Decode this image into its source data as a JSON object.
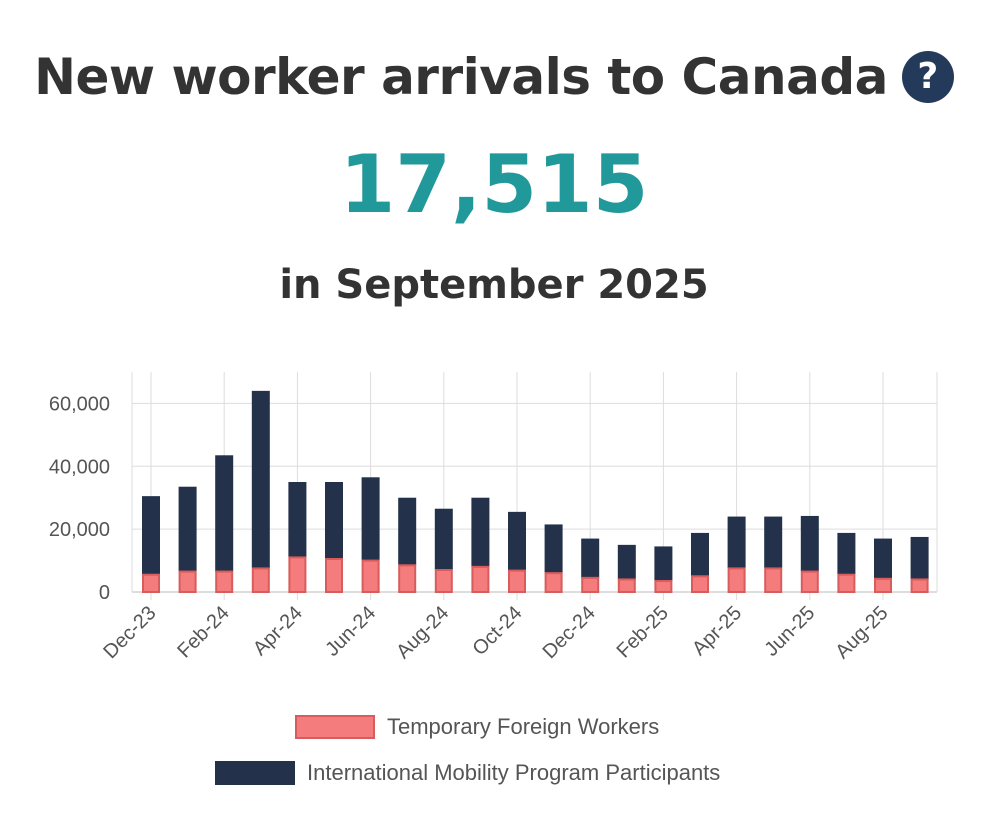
{
  "header": {
    "title": "New worker arrivals to Canada",
    "help_icon": "question-circle-icon",
    "value": "17,515",
    "period": "in September 2025"
  },
  "colors": {
    "tfw": "#f47c7c",
    "tfw_border": "#d95c5c",
    "imp": "#23314a",
    "value": "#21999a",
    "title": "#333333"
  },
  "chart_data": {
    "type": "bar",
    "stacked": true,
    "categories": [
      "Dec-23",
      "Jan-24",
      "Feb-24",
      "Mar-24",
      "Apr-24",
      "May-24",
      "Jun-24",
      "Jul-24",
      "Aug-24",
      "Sep-24",
      "Oct-24",
      "Nov-24",
      "Dec-24",
      "Jan-25",
      "Feb-25",
      "Mar-25",
      "Apr-25",
      "May-25",
      "Jun-25",
      "Jul-25",
      "Aug-25",
      "Sep-25"
    ],
    "tick_labels": [
      "Dec-23",
      "Feb-24",
      "Apr-24",
      "Jun-24",
      "Aug-24",
      "Oct-24",
      "Dec-24",
      "Feb-25",
      "Apr-25",
      "Jun-25",
      "Aug-25"
    ],
    "series": [
      {
        "name": "Temporary Foreign Workers",
        "values": [
          5500,
          6500,
          6500,
          7500,
          11000,
          10500,
          10000,
          8500,
          7000,
          8000,
          6800,
          6000,
          4500,
          4000,
          3500,
          5000,
          7500,
          7500,
          6500,
          5500,
          4200,
          4000
        ]
      },
      {
        "name": "International Mobility Program Participants",
        "values": [
          25000,
          27000,
          37000,
          56500,
          24000,
          24500,
          26500,
          21500,
          19500,
          22000,
          18700,
          15500,
          12500,
          11000,
          11000,
          13800,
          16500,
          16500,
          17700,
          13300,
          12800,
          13515
        ]
      }
    ],
    "ylim": [
      0,
      70000
    ],
    "yticks": [
      0,
      20000,
      40000,
      60000
    ],
    "ytick_labels": [
      "0",
      "20,000",
      "40,000",
      "60,000"
    ],
    "xlabel": "",
    "ylabel": "",
    "grid": true,
    "legend_position": "bottom"
  }
}
